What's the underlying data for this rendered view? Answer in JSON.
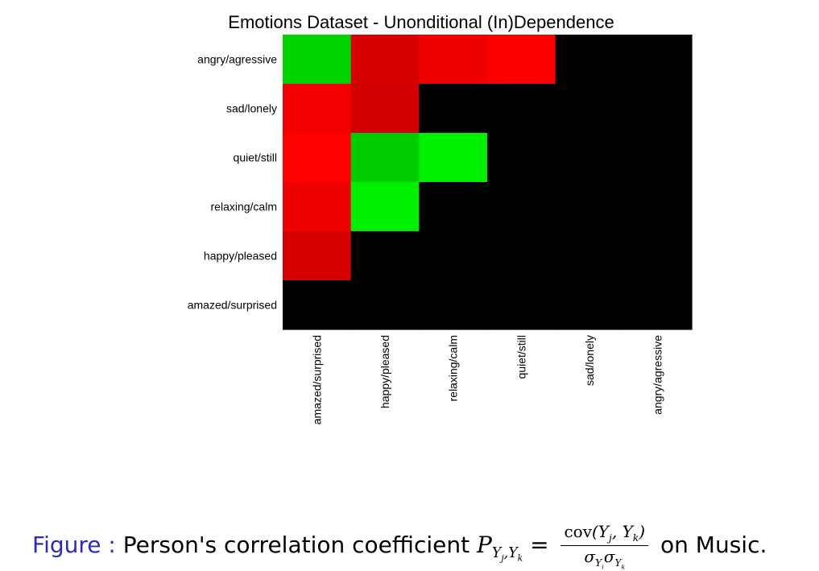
{
  "chart_data": {
    "type": "heatmap",
    "title": "Emotions Dataset - Unonditional (In)Dependence",
    "row_labels": [
      "angry/agressive",
      "sad/lonely",
      "quiet/still",
      "relaxing/calm",
      "happy/pleased",
      "amazed/surprised"
    ],
    "col_labels": [
      "amazed/surprised",
      "happy/pleased",
      "relaxing/calm",
      "quiet/still",
      "sad/lonely",
      "angry/agressive"
    ],
    "cells": [
      [
        "#00d400",
        "#d60000",
        "#ee0000",
        "#fa0000",
        "#000000",
        "#000000"
      ],
      [
        "#f20000",
        "#d40000",
        "#000000",
        "#000000",
        "#000000",
        "#000000"
      ],
      [
        "#ff0000",
        "#00cc00",
        "#00f000",
        "#000000",
        "#000000",
        "#000000"
      ],
      [
        "#ee0000",
        "#00ee00",
        "#000000",
        "#000000",
        "#000000",
        "#000000"
      ],
      [
        "#d60000",
        "#000000",
        "#000000",
        "#000000",
        "#000000",
        "#000000"
      ],
      [
        "#000000",
        "#000000",
        "#000000",
        "#000000",
        "#000000",
        "#000000"
      ]
    ],
    "colors": {
      "negative": "#ff0000",
      "positive": "#00ff00",
      "zero": "#000000"
    }
  },
  "caption": {
    "label": "Figure :",
    "text": "Person's correlation coefficient",
    "suffix": "on Music."
  }
}
